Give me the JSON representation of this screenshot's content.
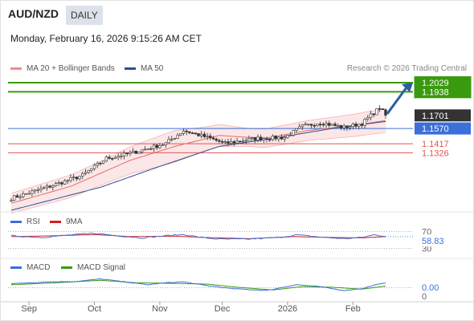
{
  "header": {
    "symbol": "AUD/NZD",
    "timeframe": "DAILY",
    "timestamp": "Monday, February 16, 2026 9:15:26 AM CET"
  },
  "legend": {
    "bollinger": {
      "label": "MA 20 + Bollinger Bands",
      "color": "#f28b8b"
    },
    "ma50": {
      "label": "MA 50",
      "color": "#2c4f8f"
    }
  },
  "credit": "Research © 2026 Trading Central",
  "chart_data": [
    {
      "type": "candlestick",
      "title": "",
      "ylim": [
        1.075,
        1.215
      ],
      "levels": [
        {
          "value": 1.2029,
          "label": "1.2029",
          "kind": "resistance",
          "color": "#3a9a0f"
        },
        {
          "value": 1.1938,
          "label": "1.1938",
          "kind": "resistance",
          "color": "#3a9a0f"
        },
        {
          "value": 1.1701,
          "label": "1.1701",
          "kind": "last",
          "color": "#333333"
        },
        {
          "value": 1.157,
          "label": "1.1570",
          "kind": "pivot",
          "color": "#3b6fd9"
        },
        {
          "value": 1.1417,
          "label": "1.1417",
          "kind": "support",
          "color": "#e05555"
        },
        {
          "value": 1.1326,
          "label": "1.1326",
          "kind": "support",
          "color": "#e05555"
        }
      ],
      "x_ticks": [
        "Sep",
        "Oct",
        "Nov",
        "Dec",
        "2026",
        "Feb"
      ],
      "x_tick_index": [
        6,
        28,
        50,
        71,
        93,
        115
      ],
      "close_anchors": [
        [
          0,
          1.087
        ],
        [
          12,
          1.098
        ],
        [
          24,
          1.11
        ],
        [
          32,
          1.127
        ],
        [
          40,
          1.132
        ],
        [
          52,
          1.142
        ],
        [
          58,
          1.155
        ],
        [
          66,
          1.148
        ],
        [
          72,
          1.142
        ],
        [
          82,
          1.147
        ],
        [
          92,
          1.148
        ],
        [
          98,
          1.159
        ],
        [
          104,
          1.163
        ],
        [
          112,
          1.158
        ],
        [
          118,
          1.162
        ],
        [
          124,
          1.178
        ],
        [
          126,
          1.17
        ]
      ],
      "ma20_anchors": [
        [
          0,
          1.082
        ],
        [
          20,
          1.099
        ],
        [
          40,
          1.125
        ],
        [
          55,
          1.139
        ],
        [
          70,
          1.15
        ],
        [
          85,
          1.147
        ],
        [
          100,
          1.155
        ],
        [
          115,
          1.16
        ],
        [
          126,
          1.165
        ]
      ],
      "ma50_anchors": [
        [
          0,
          1.075
        ],
        [
          30,
          1.098
        ],
        [
          50,
          1.119
        ],
        [
          70,
          1.139
        ],
        [
          90,
          1.148
        ],
        [
          110,
          1.158
        ],
        [
          126,
          1.164
        ]
      ],
      "band_width_anchors": [
        [
          0,
          0.01
        ],
        [
          30,
          0.012
        ],
        [
          55,
          0.016
        ],
        [
          65,
          0.012
        ],
        [
          80,
          0.009
        ],
        [
          100,
          0.01
        ],
        [
          126,
          0.012
        ]
      ],
      "projection": {
        "from": 1.1701,
        "to": 1.2029
      }
    },
    {
      "type": "line",
      "title": "",
      "series": [
        {
          "name": "RSI",
          "color": "#3b6fd9"
        },
        {
          "name": "9MA",
          "color": "#d62020"
        }
      ],
      "levels": [
        70,
        30
      ],
      "value_label": "58.83",
      "ylim": [
        25,
        75
      ],
      "rsi_anchors": [
        [
          0,
          60
        ],
        [
          10,
          56
        ],
        [
          20,
          62
        ],
        [
          28,
          66
        ],
        [
          36,
          60
        ],
        [
          44,
          55
        ],
        [
          52,
          60
        ],
        [
          58,
          63
        ],
        [
          64,
          56
        ],
        [
          70,
          52
        ],
        [
          80,
          52
        ],
        [
          90,
          56
        ],
        [
          96,
          62
        ],
        [
          104,
          57
        ],
        [
          112,
          53
        ],
        [
          118,
          56
        ],
        [
          122,
          62
        ],
        [
          126,
          59
        ]
      ],
      "ma9_anchors": [
        [
          0,
          58
        ],
        [
          15,
          60
        ],
        [
          28,
          63
        ],
        [
          40,
          58
        ],
        [
          55,
          59
        ],
        [
          65,
          56
        ],
        [
          80,
          53
        ],
        [
          95,
          58
        ],
        [
          108,
          56
        ],
        [
          118,
          55
        ],
        [
          126,
          58
        ]
      ]
    },
    {
      "type": "line",
      "title": "",
      "series": [
        {
          "name": "MACD",
          "color": "#3b6fd9"
        },
        {
          "name": "MACD Signal",
          "color": "#3a9a0f"
        }
      ],
      "levels": [
        0
      ],
      "value_label": "0.00",
      "zero_label": "0",
      "ylim": [
        -0.004,
        0.006
      ],
      "macd_anchors": [
        [
          0,
          0.002
        ],
        [
          12,
          0.003
        ],
        [
          22,
          0.0032
        ],
        [
          30,
          0.0045
        ],
        [
          38,
          0.003
        ],
        [
          46,
          0.0015
        ],
        [
          52,
          0.0025
        ],
        [
          58,
          0.003
        ],
        [
          66,
          0.001
        ],
        [
          74,
          -0.0005
        ],
        [
          86,
          -0.0015
        ],
        [
          96,
          0.0015
        ],
        [
          104,
          0.0005
        ],
        [
          112,
          -0.0015
        ],
        [
          118,
          -0.0005
        ],
        [
          124,
          0.002
        ],
        [
          126,
          0.0022
        ]
      ],
      "signal_anchors": [
        [
          0,
          0.0015
        ],
        [
          15,
          0.0025
        ],
        [
          30,
          0.0038
        ],
        [
          42,
          0.0025
        ],
        [
          55,
          0.0022
        ],
        [
          66,
          0.0018
        ],
        [
          76,
          0.0002
        ],
        [
          88,
          -0.0012
        ],
        [
          98,
          0.0005
        ],
        [
          108,
          0.0002
        ],
        [
          118,
          -0.0008
        ],
        [
          126,
          0.0008
        ]
      ]
    }
  ]
}
